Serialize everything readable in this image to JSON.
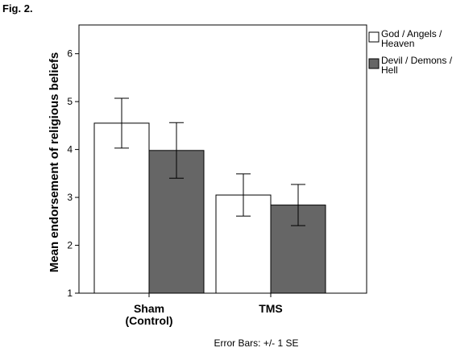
{
  "figure": {
    "label": "Fig. 2.",
    "footnote": "Error Bars: +/- 1 SE"
  },
  "chart_data": {
    "type": "bar",
    "title": "",
    "xlabel": "",
    "ylabel": "Mean endorsement of religious beliefs",
    "ylim": [
      1,
      6.6
    ],
    "yticks": [
      1,
      2,
      3,
      4,
      5,
      6
    ],
    "categories": [
      {
        "lines": [
          "Sham",
          "(Control)"
        ]
      },
      {
        "lines": [
          "TMS"
        ]
      }
    ],
    "series": [
      {
        "name_lines": [
          "God / Angels /",
          "Heaven"
        ],
        "color": "#ffffff",
        "values": [
          4.55,
          3.05
        ],
        "se": [
          0.52,
          0.44
        ]
      },
      {
        "name_lines": [
          "Devil / Demons /",
          "Hell"
        ],
        "color": "#666666",
        "values": [
          3.98,
          2.84
        ],
        "se": [
          0.58,
          0.43
        ]
      }
    ],
    "error_bars": "+/- 1 SE",
    "grid": false,
    "legend_position": "top-right, outside plot"
  }
}
